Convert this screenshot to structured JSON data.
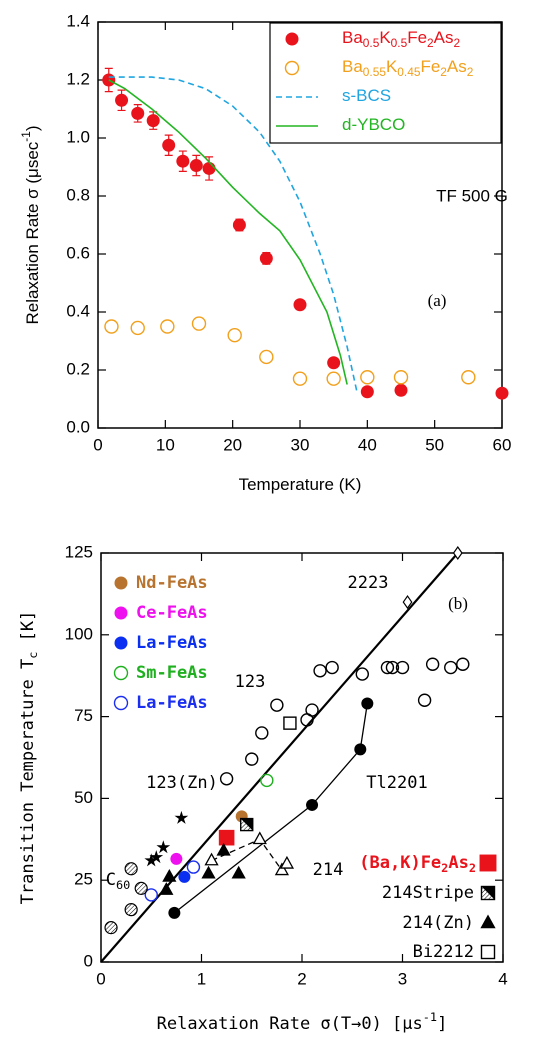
{
  "chart_data": [
    {
      "type": "scatter",
      "xlabel": "Temperature (K)",
      "ylabel": "Relaxation Rate σ (μsec-1)",
      "annotations": [
        "TF 500 G",
        "(a)"
      ],
      "xlim": [
        0,
        60
      ],
      "xticks": [
        0,
        10,
        20,
        30,
        40,
        50,
        60
      ],
      "ylim": [
        0,
        1.4
      ],
      "yticks": [
        {
          "value": 0,
          "label": "0.0"
        },
        0.2,
        0.4,
        0.6,
        0.8,
        {
          "value": 1,
          "label": "1.0"
        },
        1.2,
        1.4
      ],
      "legend": "upper right",
      "series": [
        {
          "name": "Ba0.5K0.5Fe2As2",
          "color": "#e8131b",
          "marker": "circle",
          "line": "none",
          "x": [
            1.6,
            3.5,
            5.9,
            8.2,
            10.5,
            12.6,
            14.6,
            16.5,
            21,
            25,
            30,
            35,
            40,
            45,
            60
          ],
          "values": [
            1.2,
            1.13,
            1.085,
            1.06,
            0.975,
            0.92,
            0.905,
            0.895,
            0.7,
            0.585,
            0.425,
            0.225,
            0.125,
            0.13,
            0.12
          ],
          "errors": [
            0.04,
            0.035,
            0.03,
            0.03,
            0.035,
            0.035,
            0.035,
            0.04,
            0.02,
            0.02,
            0.015,
            0.015,
            0.01,
            0.01,
            0.01
          ]
        },
        {
          "name": "Ba0.55K0.45Fe2As2",
          "color": "#f2a01c",
          "marker": "open-circle",
          "line": "none",
          "x": [
            2,
            5.9,
            10.3,
            15,
            20.3,
            25,
            30,
            35,
            40,
            45,
            55
          ],
          "values": [
            0.35,
            0.345,
            0.35,
            0.36,
            0.32,
            0.245,
            0.17,
            0.17,
            0.175,
            0.175,
            0.175
          ]
        },
        {
          "name": "s-BCS",
          "color": "#1fa5e0",
          "marker": "none",
          "line": "dashed",
          "x": [
            1.6,
            8,
            12,
            16,
            20,
            24,
            27,
            30,
            33,
            35,
            37,
            38.5
          ],
          "values": [
            1.21,
            1.21,
            1.2,
            1.17,
            1.11,
            1.02,
            0.92,
            0.78,
            0.6,
            0.46,
            0.28,
            0.12
          ]
        },
        {
          "name": "d-YBCO",
          "color": "#22b522",
          "marker": "none",
          "line": "solid",
          "x": [
            1.6,
            4,
            8,
            12,
            16,
            20,
            24,
            27,
            30,
            34,
            36,
            37
          ],
          "values": [
            1.2,
            1.17,
            1.1,
            1.02,
            0.93,
            0.83,
            0.74,
            0.68,
            0.58,
            0.4,
            0.25,
            0.15
          ]
        }
      ]
    },
    {
      "type": "scatter",
      "xlabel": "Relaxation Rate σ(T→0) [μs-1]",
      "ylabel": "Transition Temperature Tc [K]",
      "annotations": [
        "(b)"
      ],
      "xlim": [
        0,
        4
      ],
      "xticks": [
        0,
        1,
        2,
        3,
        4
      ],
      "ylim": [
        0,
        125
      ],
      "yticks": [
        0,
        25,
        50,
        75,
        100,
        125
      ],
      "reference_line": {
        "x": [
          0,
          3.55
        ],
        "values": [
          0,
          125
        ]
      },
      "series": [
        {
          "name": "Nd-FeAs",
          "color": "#b8732e",
          "marker": "circle",
          "line": "none",
          "x": [
            1.4
          ],
          "values": [
            44.5
          ]
        },
        {
          "name": "Ce-FeAs",
          "color": "#ee10ee",
          "marker": "circle",
          "line": "none",
          "x": [
            0.75
          ],
          "values": [
            31.5
          ]
        },
        {
          "name": "La-FeAs",
          "color": "#0a2ff0",
          "marker": "circle",
          "line": "none",
          "x": [
            0.83
          ],
          "values": [
            26
          ]
        },
        {
          "name": "Sm-FeAs",
          "color": "#1fb01f",
          "marker": "open-circle",
          "line": "none",
          "x": [
            1.65
          ],
          "values": [
            55.5
          ]
        },
        {
          "name": "La-FeAs",
          "color": "#1a2ff0",
          "marker": "open-circle",
          "line": "none",
          "x": [
            0.5,
            0.92
          ],
          "values": [
            20.5,
            29
          ]
        },
        {
          "name": "(Ba,K)Fe2As2",
          "color": "#e8131b",
          "marker": "square",
          "line": "none",
          "x": [
            1.25
          ],
          "values": [
            38
          ]
        },
        {
          "name": "214Stripe",
          "color": "#000000",
          "marker": "half-square",
          "line": "none",
          "x": [
            1.45
          ],
          "values": [
            42
          ]
        },
        {
          "name": "214(Zn)",
          "color": "#000000",
          "marker": "triangle",
          "line": "none",
          "x": [
            0.65,
            0.68,
            1.07,
            1.22,
            1.37
          ],
          "values": [
            22,
            26,
            27,
            34,
            27
          ]
        },
        {
          "name": "Bi2212",
          "color": "#000000",
          "marker": "open-square",
          "line": "none",
          "x": [
            1.88
          ],
          "values": [
            73
          ]
        },
        {
          "name": "2223",
          "color": "#000000",
          "marker": "diamond",
          "line": "none",
          "x": [
            3.05,
            3.55
          ],
          "values": [
            110,
            125
          ]
        },
        {
          "name": "123",
          "color": "#000000",
          "marker": "open-circle",
          "line": "none",
          "x": [
            1.25,
            1.5,
            1.6,
            1.75,
            2.05,
            2.1,
            2.18,
            2.3,
            2.6,
            2.85,
            2.9,
            3.0,
            3.22,
            3.3,
            3.48,
            3.6
          ],
          "values": [
            56,
            62,
            70,
            78.5,
            74,
            77,
            89,
            90,
            88,
            90,
            90,
            90,
            80,
            91,
            90,
            91
          ]
        },
        {
          "name": "123(Zn)",
          "color": "#000000",
          "marker": "star",
          "line": "none",
          "x": [
            0.5,
            0.55,
            0.62,
            0.8
          ],
          "values": [
            31,
            32,
            35,
            44
          ]
        },
        {
          "name": "Tl2201",
          "color": "#000000",
          "marker": "circle",
          "line": "solid",
          "x": [
            0.73,
            2.1,
            2.58,
            2.65
          ],
          "values": [
            15,
            48,
            65,
            79
          ]
        },
        {
          "name": "214",
          "color": "#000000",
          "marker": "open-triangle",
          "line": "dashed",
          "x": [
            1.1,
            1.58,
            1.8,
            1.85
          ],
          "values": [
            31,
            37.5,
            28,
            30
          ]
        },
        {
          "name": "C60",
          "color": "#000000",
          "marker": "hatched-circle",
          "line": "none",
          "x": [
            0.1,
            0.3,
            0.4,
            0.3
          ],
          "values": [
            10.5,
            16,
            22.5,
            28.5
          ]
        }
      ]
    }
  ]
}
